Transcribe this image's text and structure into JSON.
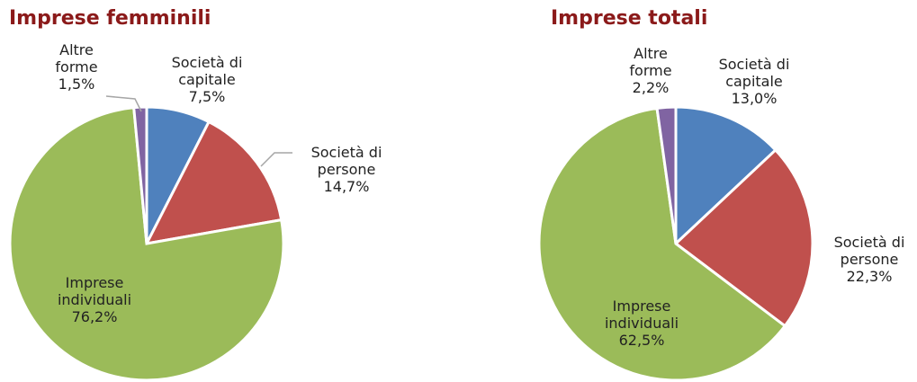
{
  "chart_data": [
    {
      "type": "pie",
      "title": "Imprese femminili",
      "categories": [
        "Società di capitale",
        "Società di persone",
        "Imprese individuali",
        "Altre forme"
      ],
      "values": [
        7.5,
        14.7,
        76.2,
        1.5
      ],
      "value_labels": [
        "7,5%",
        "14,7%",
        "76,2%",
        "1,5%"
      ],
      "colors": [
        "#4f81bd",
        "#c0504d",
        "#9bbb59",
        "#8064a2"
      ]
    },
    {
      "type": "pie",
      "title": "Imprese totali",
      "categories": [
        "Società di capitale",
        "Società di persone",
        "Imprese individuali",
        "Altre forme"
      ],
      "values": [
        13.0,
        22.3,
        62.5,
        2.2
      ],
      "value_labels": [
        "13,0%",
        "22,3%",
        "62,5%",
        "2,2%"
      ],
      "colors": [
        "#4f81bd",
        "#c0504d",
        "#9bbb59",
        "#8064a2"
      ]
    }
  ]
}
